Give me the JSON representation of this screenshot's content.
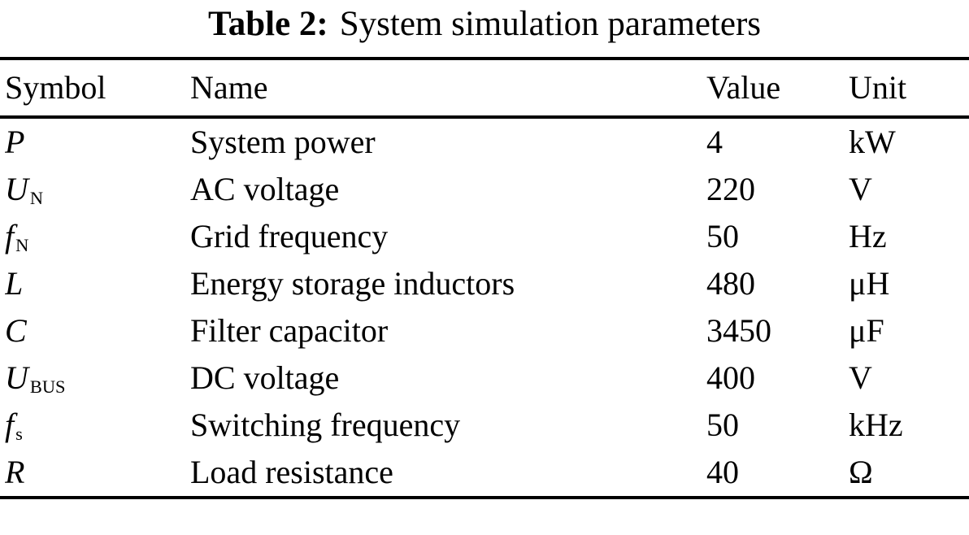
{
  "caption": {
    "label": "Table 2:",
    "text": "System simulation parameters"
  },
  "headers": [
    "Symbol",
    "Name",
    "Value",
    "Unit"
  ],
  "rows": [
    {
      "symbol": "P",
      "sub": "",
      "name": "System power",
      "value": "4",
      "unit": "kW"
    },
    {
      "symbol": "U",
      "sub": "N",
      "name": "AC voltage",
      "value": "220",
      "unit": "V"
    },
    {
      "symbol": "f",
      "sub": "N",
      "name": "Grid frequency",
      "value": "50",
      "unit": "Hz"
    },
    {
      "symbol": "L",
      "sub": "",
      "name": "Energy storage inductors",
      "value": "480",
      "unit": "μH"
    },
    {
      "symbol": "C",
      "sub": "",
      "name": "Filter capacitor",
      "value": "3450",
      "unit": "μF"
    },
    {
      "symbol": "U",
      "sub": "BUS",
      "name": "DC voltage",
      "value": "400",
      "unit": "V"
    },
    {
      "symbol": "f",
      "sub": "s",
      "name": "Switching frequency",
      "value": "50",
      "unit": "kHz"
    },
    {
      "symbol": "R",
      "sub": "",
      "name": "Load resistance",
      "value": "40",
      "unit": "Ω"
    }
  ]
}
